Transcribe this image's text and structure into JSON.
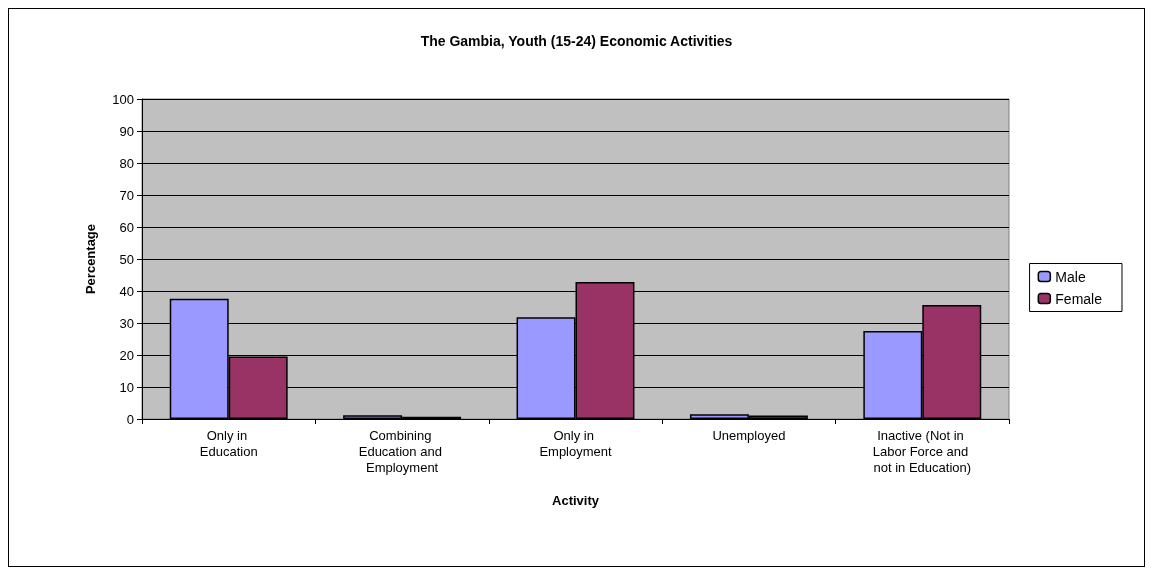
{
  "chart_data": {
    "type": "bar",
    "title": "The Gambia, Youth (15-24) Economic Activities",
    "xlabel": "Activity",
    "ylabel": "Percentage",
    "categories": [
      "Only in Education",
      "Combining Education and Employment",
      "Only in Employment",
      "Unemployed",
      "Inactive (Not in Labor Force and not in Education)"
    ],
    "series": [
      {
        "name": "Male",
        "color": "#9999ff",
        "values": [
          37.6,
          1.2,
          31.8,
          1.5,
          27.5
        ]
      },
      {
        "name": "Female",
        "color": "#993366",
        "values": [
          19.5,
          0.7,
          42.8,
          1.1,
          35.6
        ]
      }
    ],
    "ylim": [
      0,
      100
    ],
    "yticks": [
      0,
      10,
      20,
      30,
      40,
      50,
      60,
      70,
      80,
      90,
      100
    ],
    "grid": "y",
    "legend": "right"
  }
}
